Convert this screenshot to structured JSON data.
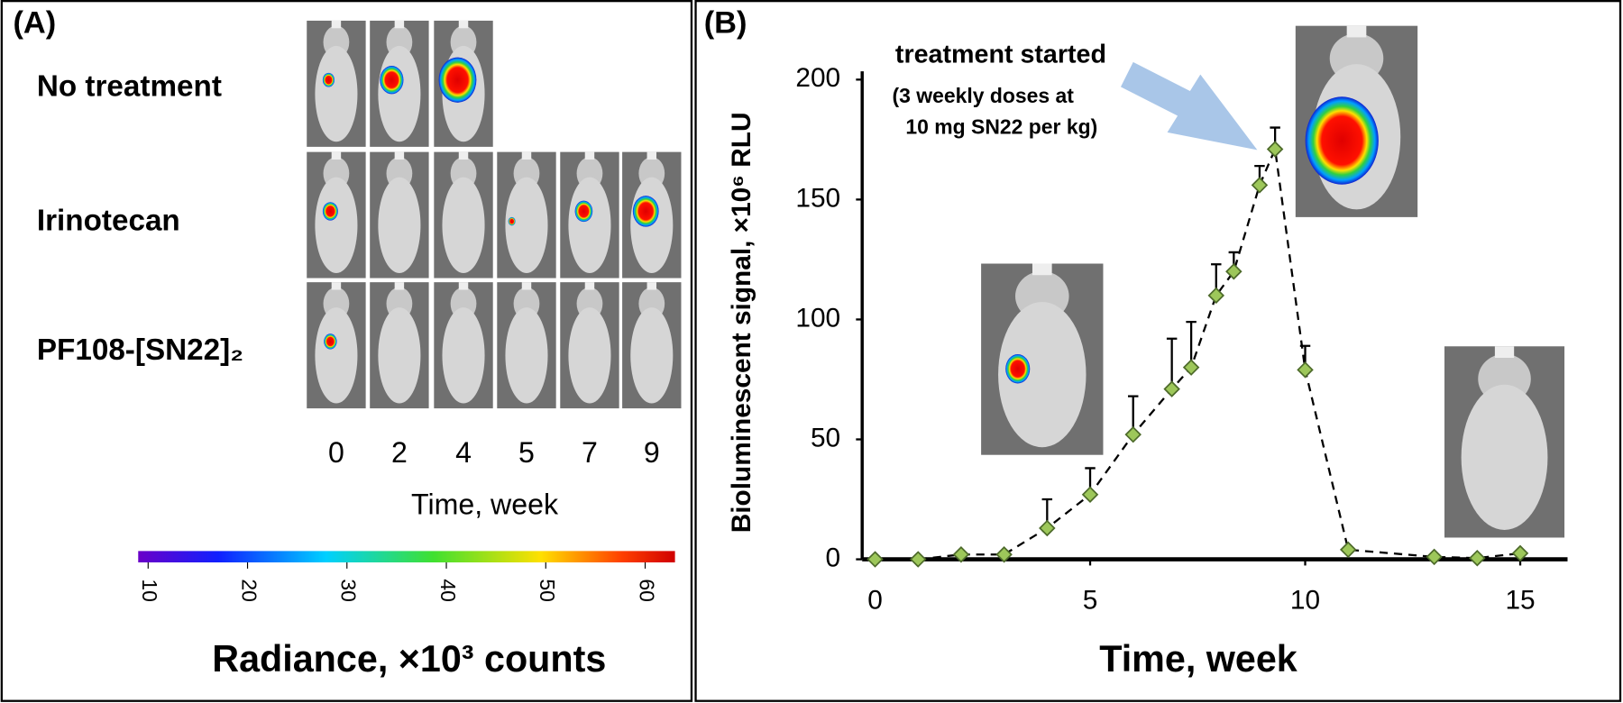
{
  "chart_data": [
    {
      "type": "image-grid",
      "panel_label": "(A)",
      "row_labels": [
        "No treatment",
        "Irinotecan",
        "PF108-[SN22]₂"
      ],
      "categories": [
        "0",
        "2",
        "4",
        "5",
        "7",
        "9"
      ],
      "xlabel": "Time, week",
      "colorbar": {
        "label": "Radiance, ×10³ counts",
        "xlim": [
          9,
          63
        ],
        "xticks": [
          10,
          20,
          30,
          40,
          50,
          60
        ]
      }
    },
    {
      "type": "line",
      "panel_label": "(B)",
      "xlabel": "Time, week",
      "ylabel": "Bioluminescent signal, ×10⁶ RLU",
      "annotation": [
        "treatment started",
        "(3 weekly doses at",
        "10 mg SN22 per kg)"
      ],
      "x": [
        0,
        1,
        2,
        3,
        4,
        5,
        6,
        6.9,
        7.35,
        7.93,
        8.34,
        8.94,
        9.3,
        10,
        11,
        13,
        14,
        15
      ],
      "series": [
        {
          "color": "#9dc75a",
          "values": [
            0,
            0,
            2,
            2,
            13,
            27,
            52,
            71,
            80,
            110,
            120,
            156,
            171,
            79,
            4,
            1,
            0.5,
            2.5
          ],
          "errors": [
            null,
            null,
            null,
            null,
            12,
            11,
            16,
            21,
            19,
            13,
            8,
            8,
            9,
            10,
            null,
            null,
            null,
            null
          ]
        }
      ],
      "xlim": [
        -0.3,
        16.1
      ],
      "ylim": [
        0,
        200
      ],
      "xticks": [
        0,
        5,
        10,
        15
      ],
      "yticks": [
        0,
        50,
        100,
        150,
        200
      ]
    }
  ]
}
